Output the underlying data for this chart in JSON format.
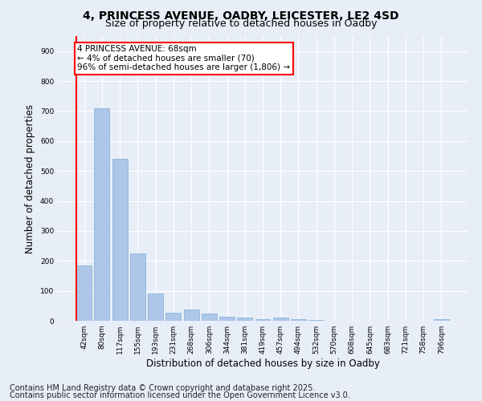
{
  "title1": "4, PRINCESS AVENUE, OADBY, LEICESTER, LE2 4SD",
  "title2": "Size of property relative to detached houses in Oadby",
  "xlabel": "Distribution of detached houses by size in Oadby",
  "ylabel": "Number of detached properties",
  "footer1": "Contains HM Land Registry data © Crown copyright and database right 2025.",
  "footer2": "Contains public sector information licensed under the Open Government Licence v3.0.",
  "categories": [
    "42sqm",
    "80sqm",
    "117sqm",
    "155sqm",
    "193sqm",
    "231sqm",
    "268sqm",
    "306sqm",
    "344sqm",
    "381sqm",
    "419sqm",
    "457sqm",
    "494sqm",
    "532sqm",
    "570sqm",
    "608sqm",
    "645sqm",
    "683sqm",
    "721sqm",
    "758sqm",
    "796sqm"
  ],
  "values": [
    185,
    710,
    540,
    225,
    90,
    28,
    37,
    25,
    14,
    10,
    5,
    10,
    5,
    2,
    0,
    0,
    0,
    0,
    0,
    0,
    5
  ],
  "bar_color": "#aec6e8",
  "bar_edge_color": "#7aafd4",
  "vline_color": "red",
  "vline_x": -0.42,
  "annotation_text": "4 PRINCESS AVENUE: 68sqm\n← 4% of detached houses are smaller (70)\n96% of semi-detached houses are larger (1,806) →",
  "annotation_box_color": "white",
  "annotation_box_edge_color": "red",
  "ylim": [
    0,
    950
  ],
  "yticks": [
    0,
    100,
    200,
    300,
    400,
    500,
    600,
    700,
    800,
    900
  ],
  "bg_color": "#e8eef8",
  "plot_bg_color": "#e8eef8",
  "grid_color": "white",
  "title_fontsize": 10,
  "subtitle_fontsize": 9,
  "tick_fontsize": 6.5,
  "label_fontsize": 8.5,
  "footer_fontsize": 7,
  "ann_fontsize": 7.5
}
